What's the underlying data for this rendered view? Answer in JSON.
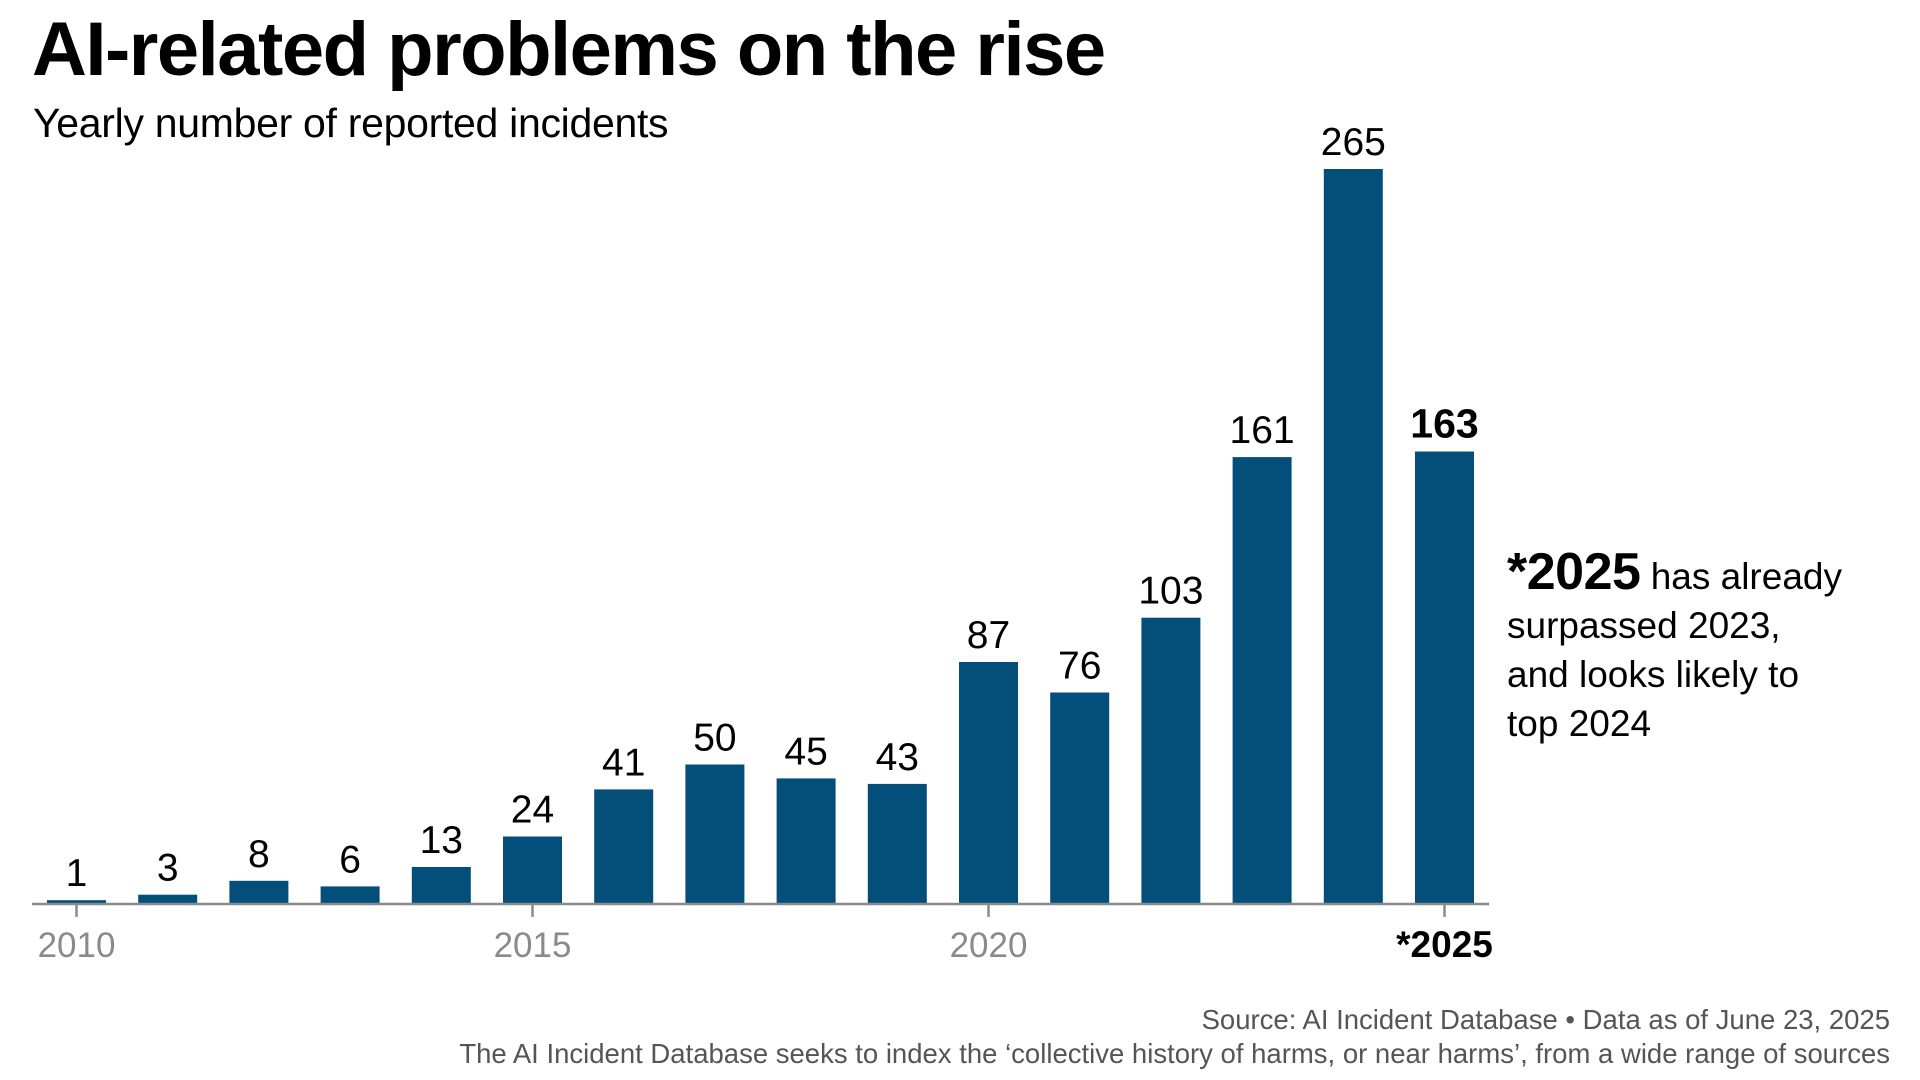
{
  "header": {
    "title": "AI-related problems on the rise",
    "subtitle": "Yearly number of reported incidents"
  },
  "annotation": {
    "strong": "*2025",
    "lines": [
      "has already",
      "surpassed 2023,",
      "and looks likely to",
      "top 2024"
    ]
  },
  "footer": {
    "source": "Source: AI Incident Database • Data as of June 23, 2025",
    "note": "The AI Incident Database seeks to index the ‘collective history of harms, or near harms’, from a wide range of sources"
  },
  "colors": {
    "bar": "#034F7A",
    "axis": "#8a8a8a",
    "tick_label": "#8a8a8a",
    "footer_text": "#555555"
  },
  "chart_data": {
    "type": "bar",
    "title": "AI-related problems on the rise",
    "subtitle": "Yearly number of reported incidents",
    "xlabel": "",
    "ylabel": "",
    "categories": [
      "2010",
      "2011",
      "2012",
      "2013",
      "2014",
      "2015",
      "2016",
      "2017",
      "2018",
      "2019",
      "2020",
      "2021",
      "2022",
      "2023",
      "2024",
      "2025"
    ],
    "values": [
      1,
      3,
      8,
      6,
      13,
      24,
      41,
      50,
      45,
      43,
      87,
      76,
      103,
      161,
      265,
      163
    ],
    "value_labels": [
      "1",
      "3",
      "8",
      "6",
      "13",
      "24",
      "41",
      "50",
      "45",
      "43",
      "87",
      "76",
      "103",
      "161",
      "265",
      "163"
    ],
    "highlight_category": "2025",
    "highlight_note": "partial year (data as of June 23, 2025)",
    "x_ticks": [
      {
        "category": "2010",
        "label": "2010"
      },
      {
        "category": "2015",
        "label": "2015"
      },
      {
        "category": "2020",
        "label": "2020"
      },
      {
        "category": "2025",
        "label": "*2025"
      }
    ],
    "ylim": [
      0,
      265
    ],
    "grid": false,
    "y_axis_visible": false,
    "legend": "none"
  }
}
